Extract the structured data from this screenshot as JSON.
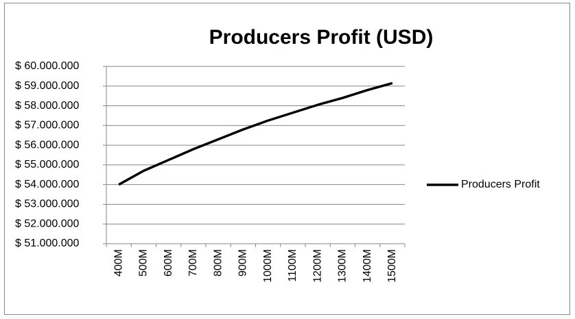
{
  "chart_data": {
    "type": "line",
    "title": "Producers Profit (USD)",
    "categories": [
      "400M",
      "500M",
      "600M",
      "700M",
      "800M",
      "900M",
      "1000M",
      "1100M",
      "1200M",
      "1300M",
      "1400M",
      "1500M"
    ],
    "series": [
      {
        "name": "Producers Profit",
        "color": "#000000",
        "values": [
          54000000,
          54700000,
          55250000,
          55800000,
          56300000,
          56800000,
          57250000,
          57650000,
          58050000,
          58400000,
          58800000,
          59150000
        ]
      }
    ],
    "ylim": [
      51000000,
      60000000
    ],
    "yticks": [
      {
        "value": 51000000,
        "label": "$ 51.000.000"
      },
      {
        "value": 52000000,
        "label": "$ 52.000.000"
      },
      {
        "value": 53000000,
        "label": "$ 53.000.000"
      },
      {
        "value": 54000000,
        "label": "$ 54.000.000"
      },
      {
        "value": 55000000,
        "label": "$ 55.000.000"
      },
      {
        "value": 56000000,
        "label": "$ 56.000.000"
      },
      {
        "value": 57000000,
        "label": "$ 57.000.000"
      },
      {
        "value": 58000000,
        "label": "$ 58.000.000"
      },
      {
        "value": 59000000,
        "label": "$ 59.000.000"
      },
      {
        "value": 60000000,
        "label": "$ 60.000.000"
      }
    ],
    "grid": true,
    "legend": "right"
  }
}
